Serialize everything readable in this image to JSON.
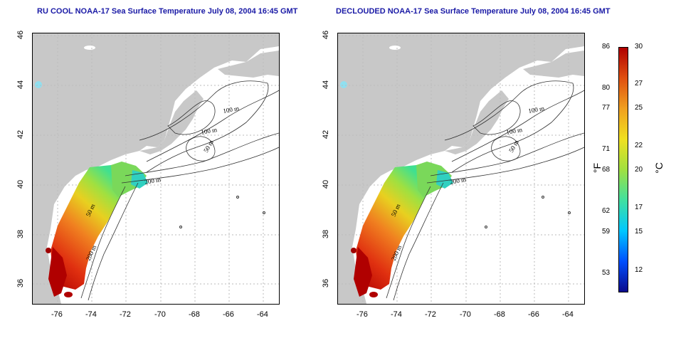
{
  "panels": [
    {
      "title": "RU COOL NOAA-17 Sea Surface Temperature July 08, 2004 16:45 GMT"
    },
    {
      "title": "DECLOUDED NOAA-17 Sea Surface Temperature July 08, 2004 16:45 GMT"
    }
  ],
  "axes": {
    "x_ticks": [
      "-76",
      "-74",
      "-72",
      "-70",
      "-68",
      "-66",
      "-64"
    ],
    "y_ticks": [
      "36",
      "38",
      "40",
      "42",
      "44",
      "46"
    ]
  },
  "contour_labels": [
    "100 m",
    "100 m",
    "50 m",
    "200 m",
    "50 m",
    "200 m"
  ],
  "colorbar": {
    "fahrenheit_ticks": [
      "86",
      "80",
      "77",
      "71",
      "68",
      "62",
      "59",
      "53"
    ],
    "celsius_ticks": [
      "30",
      "27",
      "25",
      "22",
      "20",
      "17",
      "15",
      "12"
    ],
    "unit_f": "°F",
    "unit_c": "°C",
    "colors": [
      "#0a0a8c",
      "#0050ff",
      "#00c8ff",
      "#40e0a0",
      "#a0e040",
      "#f0e020",
      "#f0a020",
      "#e05010",
      "#b00000"
    ]
  },
  "colors": {
    "land": "#c8c8c8",
    "title": "#1a1aa6"
  }
}
